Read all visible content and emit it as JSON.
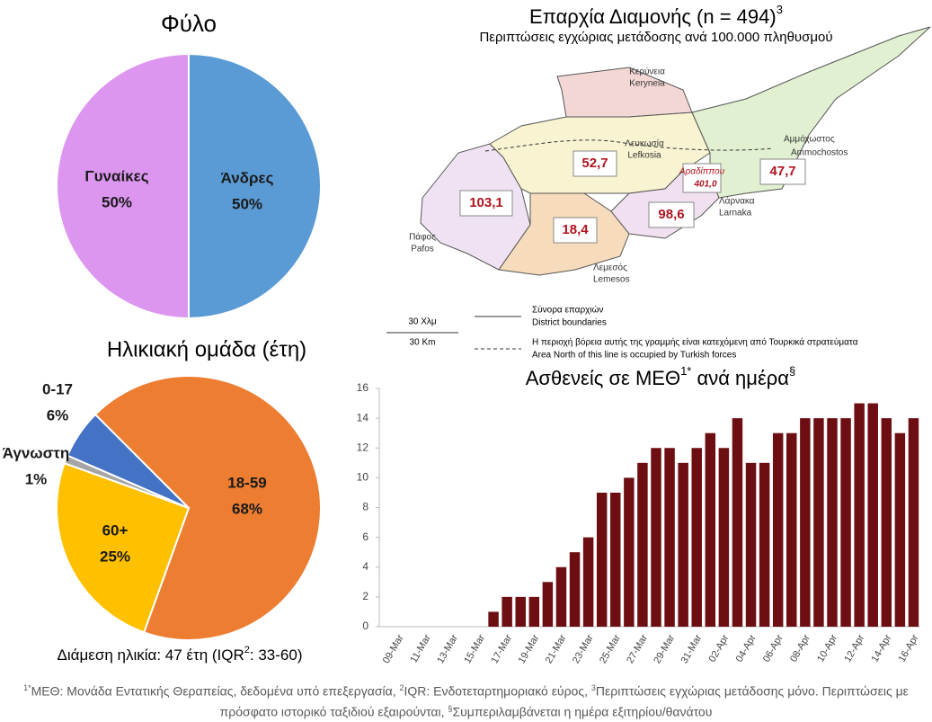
{
  "chart_data": [
    {
      "type": "pie",
      "title": "Φύλο",
      "categories": [
        "Γυναίκες",
        "Άνδρες"
      ],
      "values": [
        50,
        50
      ],
      "value_labels": [
        "50%",
        "50%"
      ],
      "colors": [
        "#dc96f0",
        "#5b9bd5"
      ]
    },
    {
      "type": "pie",
      "title": "Ηλικιακή ομάδα (έτη)",
      "categories": [
        "18-59",
        "60+",
        "Άγνωστη",
        "0-17"
      ],
      "values": [
        68,
        25,
        1,
        6
      ],
      "value_labels": [
        "68%",
        "25%",
        "1%",
        "6%"
      ],
      "colors": [
        "#ed7d31",
        "#ffc000",
        "#a5a5a5",
        "#4472c4"
      ],
      "note": [
        "Διάμεση ηλικία: 47 έτη (IQR",
        "2",
        ": 33-60)"
      ]
    },
    {
      "type": "bar",
      "title": [
        "Ασθενείς σε ΜΕΘ",
        "1*",
        " ανά ημέρα",
        "§"
      ],
      "categories": [
        "09-Mar",
        null,
        "11-Mar",
        null,
        "13-Mar",
        null,
        "15-Mar",
        null,
        "17-Mar",
        null,
        "19-Mar",
        null,
        "21-Mar",
        null,
        "23-Mar",
        null,
        "25-Mar",
        null,
        "27-Mar",
        null,
        "29-Mar",
        null,
        "31-Mar",
        null,
        "02-Apr",
        null,
        "04-Apr",
        null,
        "06-Apr",
        null,
        "08-Apr",
        null,
        "10-Apr",
        null,
        "12-Apr",
        null,
        "14-Apr",
        null,
        "16-Apr"
      ],
      "values": [
        0,
        0,
        0,
        0,
        0,
        0,
        0,
        1,
        2,
        2,
        2,
        3,
        4,
        5,
        6,
        9,
        9,
        10,
        11,
        12,
        12,
        11,
        12,
        13,
        12,
        14,
        11,
        11,
        13,
        13,
        14,
        14,
        14,
        14,
        15,
        15,
        14,
        13,
        14
      ],
      "color": "#6d0f12",
      "ylim": [
        0,
        16
      ],
      "yticks": [
        0,
        2,
        4,
        6,
        8,
        10,
        12,
        14,
        16
      ],
      "grid": false
    }
  ],
  "map": {
    "title": "Επαρχία Διαμονής (n = 494)",
    "title_sup": "3",
    "subtitle": "Περιπτώσεις εγχώριας μετάδοσης ανά 100.000 πληθυσμού",
    "places": [
      [
        "Κερύνεια",
        "Keryneia"
      ],
      [
        "Λευκωσία",
        "Lefkosia"
      ],
      [
        "Αμμόχωστος",
        "Ammochostos"
      ],
      [
        "Λάρνακα",
        "Larnaka"
      ],
      [
        "Λεμεσός",
        "Lemesos"
      ],
      [
        "Πάφος",
        "Pafos"
      ]
    ],
    "rates": [
      "52,7",
      "47,7",
      "103,1",
      "18,4",
      "98,6"
    ],
    "hotspot": [
      "Αραδίππου",
      "401,0"
    ],
    "legend": {
      "scale": [
        "30 Χλμ",
        "30 Km"
      ],
      "boundary": [
        "Σύνορα επαρχιών",
        "District boundaries"
      ],
      "occupied": [
        "Η περιοχή βόρεια αυτής της γραμμής είναι κατεχόμενη από Τουρκικά στρατεύματα",
        "Area North of this line is occupied by Turkish forces"
      ]
    }
  },
  "footnote": [
    {
      "sup": "1*",
      "text": "ΜΕΘ: Μονάδα Εντατικής Θεραπείας, δεδομένα υπό επεξεργασία, "
    },
    {
      "sup": "2",
      "text": "IQR: Ενδοτεταρτημοριακό εύρος, "
    },
    {
      "sup": "3",
      "text": "Περιπτώσεις εγχώριας μετάδοσης μόνο. Περιπτώσεις με πρόσφατο ιστορικό ταξιδιού εξαιρούνται, "
    },
    {
      "sup": "§",
      "text": "Συμπεριλαμβάνεται η ημέρα εξιτηρίου/θανάτου"
    }
  ]
}
